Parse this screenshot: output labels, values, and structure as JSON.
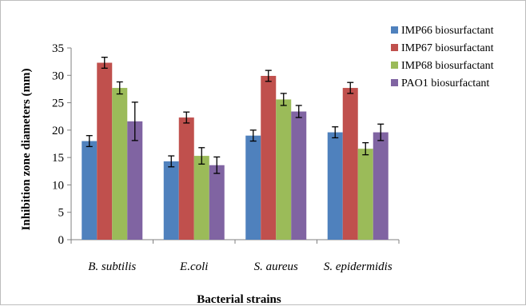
{
  "chart_data": {
    "type": "bar",
    "categories": [
      "B. subtilis",
      "E.coli",
      "S. aureus",
      "S. epidermidis"
    ],
    "series": [
      {
        "name": "IMP66 biosurfactant",
        "color": "#4F81BD",
        "values": [
          18.0,
          14.3,
          19.0,
          19.6
        ],
        "errors": [
          1.0,
          1.0,
          1.0,
          1.0
        ]
      },
      {
        "name": "IMP67 biosurfactant",
        "color": "#C0504D",
        "values": [
          32.3,
          22.3,
          29.9,
          27.7
        ],
        "errors": [
          1.0,
          1.0,
          1.0,
          1.0
        ]
      },
      {
        "name": "IMP68 biosurfactant",
        "color": "#9BBB59",
        "values": [
          27.7,
          15.3,
          25.6,
          16.6
        ],
        "errors": [
          1.1,
          1.5,
          1.1,
          1.1
        ]
      },
      {
        "name": "PAO1 biosurfactant",
        "color": "#8064A2",
        "values": [
          21.6,
          13.6,
          23.4,
          19.6
        ],
        "errors": [
          3.5,
          1.5,
          1.1,
          1.5
        ]
      }
    ],
    "xlabel": "Bacterial strains",
    "ylabel": "Inhibition zone diameters (mm)",
    "ylim": [
      0,
      35
    ],
    "yticks": [
      0,
      5,
      10,
      15,
      20,
      25,
      30,
      35
    ],
    "grid": false,
    "legend_position": "right"
  }
}
